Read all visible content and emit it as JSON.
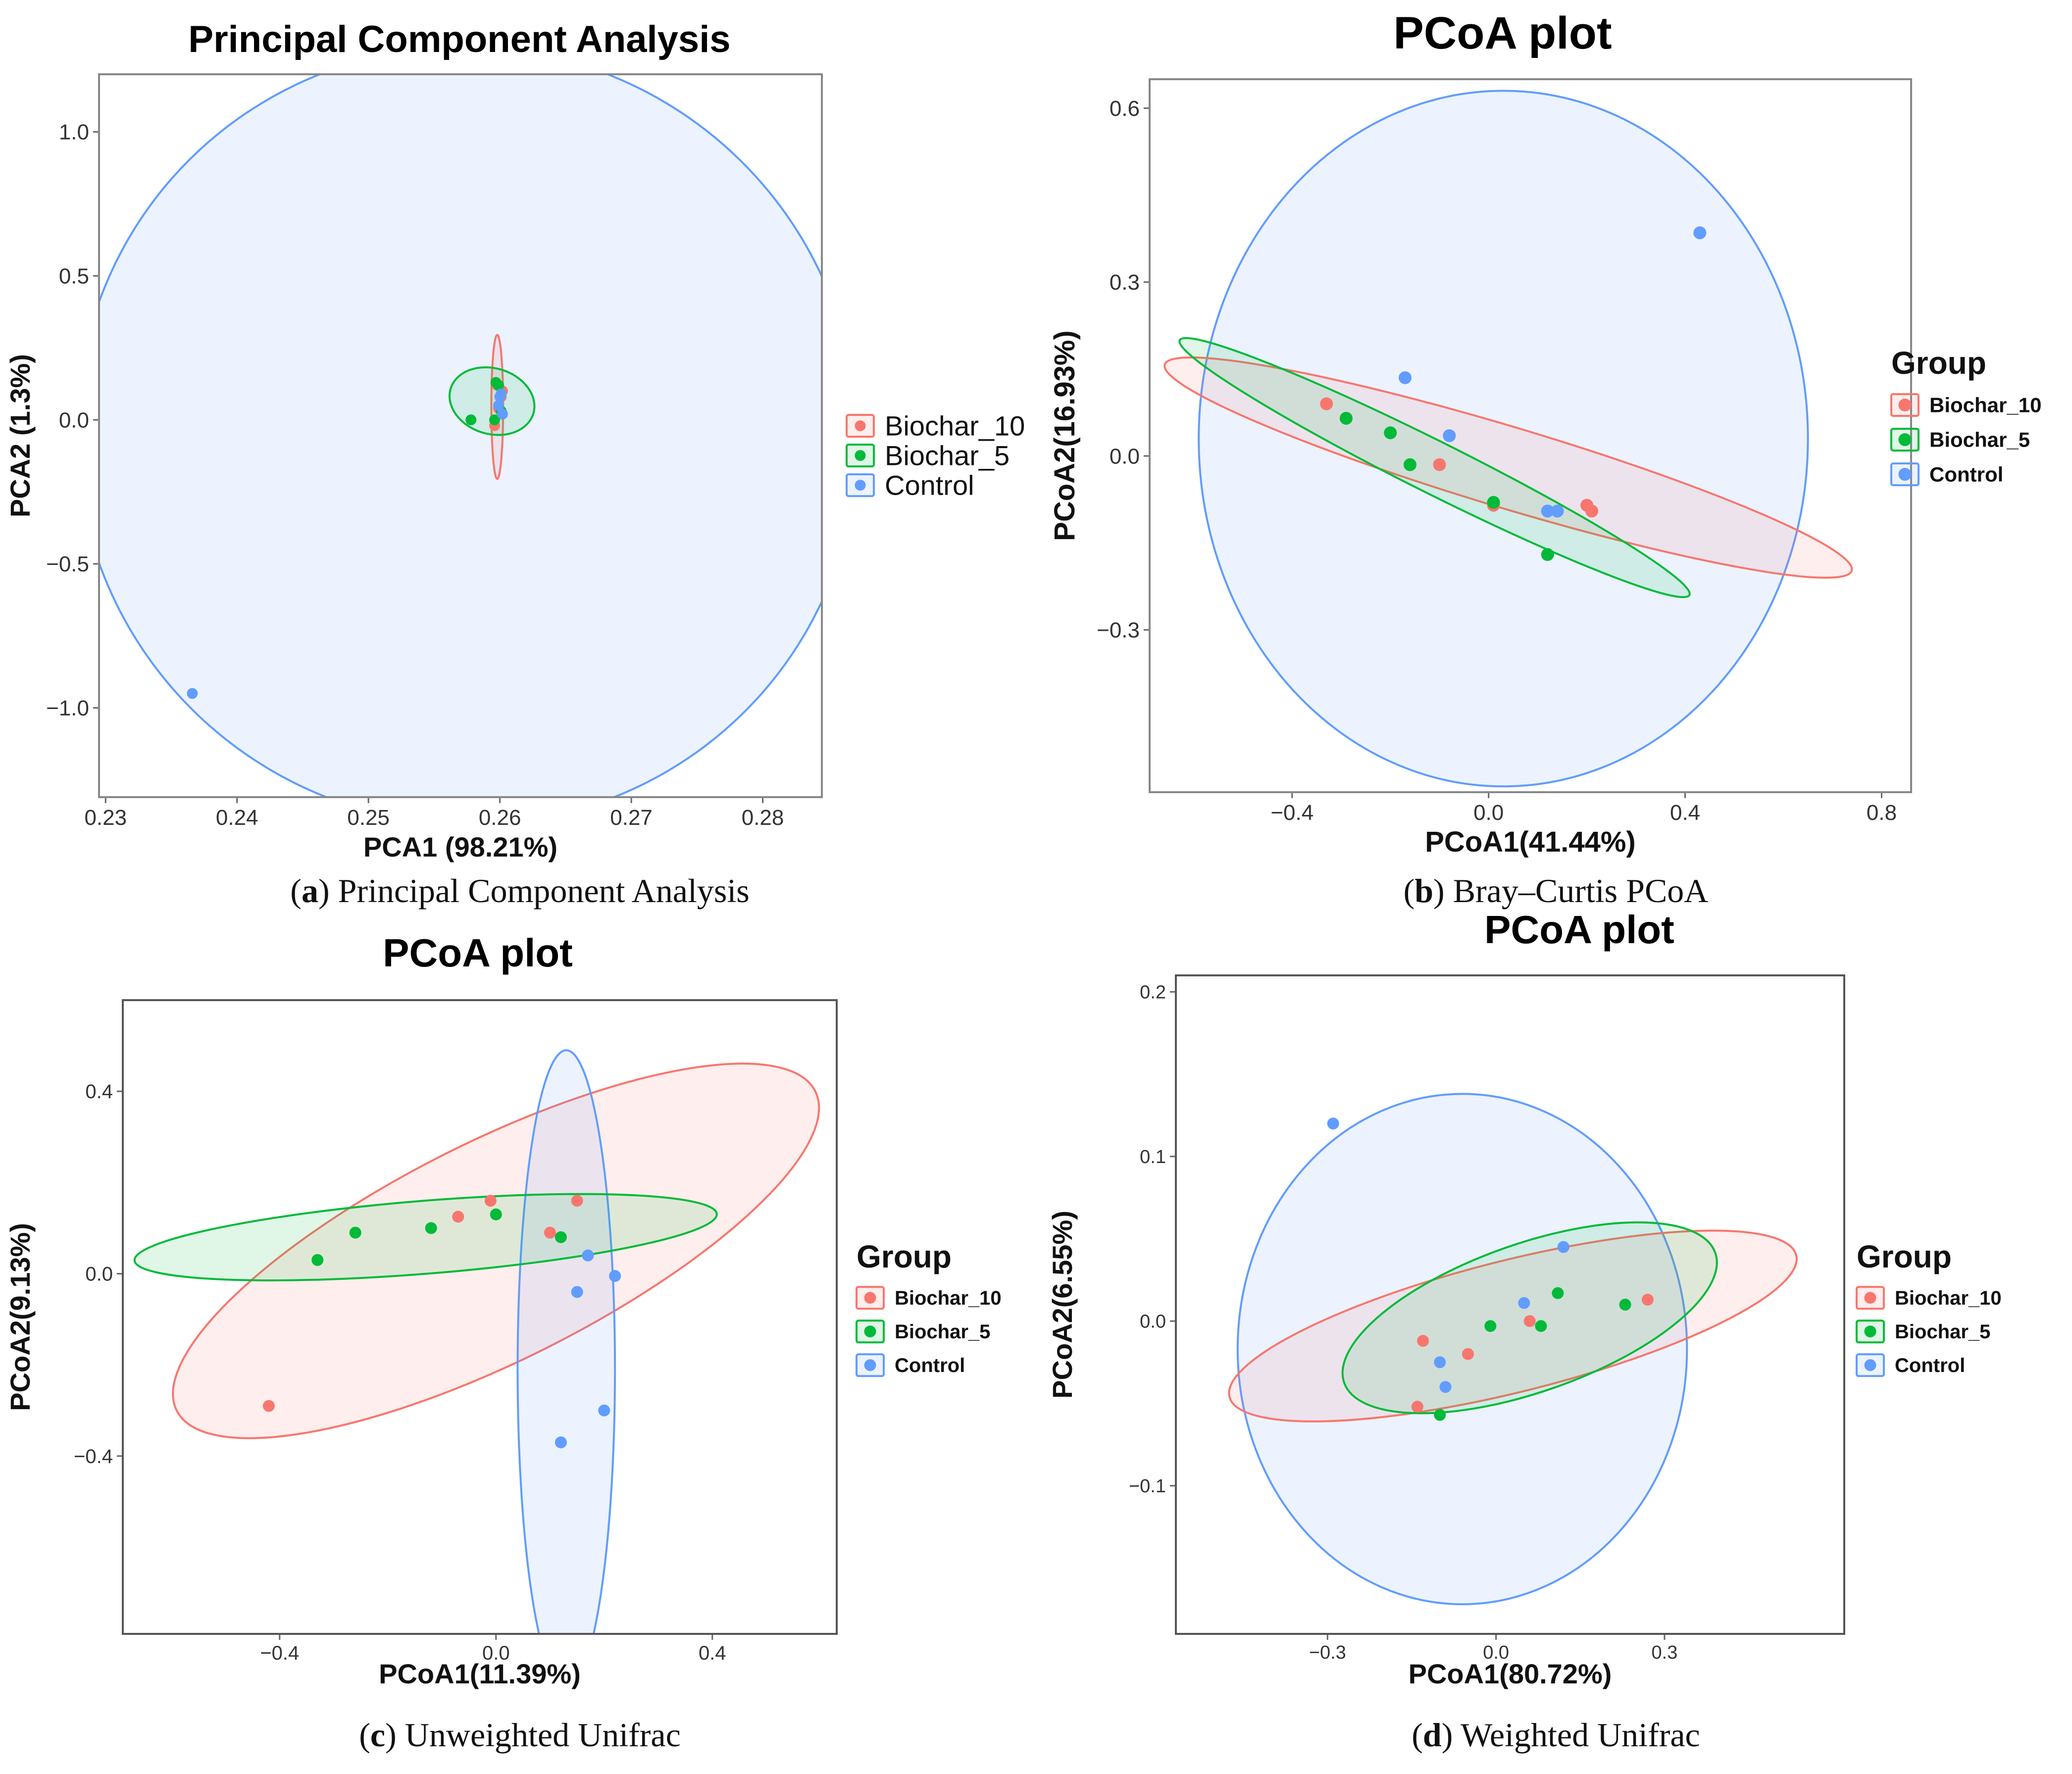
{
  "colors": {
    "Biochar_10": "#F8766D",
    "Biochar_5": "#00BA38",
    "Control": "#619CFF"
  },
  "groups": [
    "Biochar_10",
    "Biochar_5",
    "Control"
  ],
  "legend_title": "Group",
  "captions": [
    {
      "letter": "a",
      "open": "(",
      "close": ")",
      "text": " Principal Component Analysis"
    },
    {
      "letter": "b",
      "open": "(",
      "close": ")",
      "text": " Bray–Curtis PCoA"
    },
    {
      "letter": "c",
      "open": "(",
      "close": ")",
      "text": " Unweighted Unifrac"
    },
    {
      "letter": "d",
      "open": "(",
      "close": ")",
      "text": " Weighted Unifrac"
    }
  ],
  "chart_data": [
    {
      "type": "scatter",
      "title": "Principal Component Analysis",
      "xlabel": "PCA1 (98.21%)",
      "ylabel": "PCA2 (1.3%)",
      "xlim": [
        0.2295,
        0.2845
      ],
      "ylim": [
        -1.31,
        1.2
      ],
      "xticks": [
        0.23,
        0.24,
        0.25,
        0.26,
        0.27,
        0.28
      ],
      "xtick_labels": [
        "0.23",
        "0.24",
        "0.25",
        "0.26",
        "0.27",
        "0.28"
      ],
      "yticks": [
        -1.0,
        -0.5,
        0.0,
        0.5,
        1.0
      ],
      "ytick_labels": [
        "−1.0",
        "−0.5",
        "0.0",
        "0.5",
        "1.0"
      ],
      "legend_title": "",
      "series": [
        {
          "name": "Biochar_10",
          "x": [
            0.2598,
            0.2601,
            0.2596,
            0.2599,
            0.2602
          ],
          "y": [
            0.12,
            0.08,
            -0.02,
            0.04,
            0.1
          ]
        },
        {
          "name": "Biochar_5",
          "x": [
            0.2578,
            0.2597,
            0.2599,
            0.2596,
            0.2601
          ],
          "y": [
            0.0,
            0.13,
            0.12,
            0.0,
            0.03
          ]
        },
        {
          "name": "Control",
          "x": [
            0.2366,
            0.26,
            0.2599,
            0.2601,
            0.2602
          ],
          "y": [
            -0.95,
            0.08,
            0.05,
            0.09,
            0.02
          ]
        }
      ],
      "ellipses": [
        {
          "group": "Control",
          "cx": 0.2575,
          "cy": -0.055,
          "rx": 0.0295,
          "ry": 1.36,
          "tilt": -0.6
        },
        {
          "group": "Biochar_10",
          "cx": 0.2598,
          "cy": 0.045,
          "rx": 0.00045,
          "ry": 0.25,
          "tilt": 0.0
        },
        {
          "group": "Biochar_5",
          "cx": 0.2594,
          "cy": 0.065,
          "rx": 0.0025,
          "ry": 0.15,
          "tilt": -0.3
        }
      ]
    },
    {
      "type": "scatter",
      "title": "PCoA plot",
      "xlabel": "PCoA1(41.44%)",
      "ylabel": "PCoA2(16.93%)",
      "xlim": [
        -0.69,
        0.86
      ],
      "ylim": [
        -0.58,
        0.65
      ],
      "xticks": [
        -0.4,
        0.0,
        0.4,
        0.8
      ],
      "xtick_labels": [
        "−0.4",
        "0.0",
        "0.4",
        "0.8"
      ],
      "yticks": [
        -0.3,
        0.0,
        0.3,
        0.6
      ],
      "ytick_labels": [
        "−0.3",
        "0.0",
        "0.3",
        "0.6"
      ],
      "legend_title": "Group",
      "series": [
        {
          "name": "Biochar_10",
          "x": [
            -0.33,
            -0.1,
            0.01,
            0.2,
            0.21
          ],
          "y": [
            0.09,
            -0.015,
            -0.085,
            -0.085,
            -0.095
          ]
        },
        {
          "name": "Biochar_5",
          "x": [
            -0.29,
            -0.2,
            -0.16,
            0.01,
            0.12
          ],
          "y": [
            0.065,
            0.04,
            -0.015,
            -0.08,
            -0.17
          ]
        },
        {
          "name": "Control",
          "x": [
            -0.17,
            -0.08,
            0.12,
            0.14,
            0.43
          ],
          "y": [
            0.135,
            0.035,
            -0.095,
            -0.095,
            0.385
          ]
        }
      ],
      "ellipses": [
        {
          "group": "Control",
          "cx": 0.03,
          "cy": 0.03,
          "rx": 0.62,
          "ry": 0.6,
          "tilt": 0.0
        },
        {
          "group": "Biochar_10",
          "cx": 0.04,
          "cy": -0.02,
          "rx": 0.73,
          "ry": 0.07,
          "tilt": -0.3
        },
        {
          "group": "Biochar_5",
          "cx": -0.11,
          "cy": -0.02,
          "rx": 0.58,
          "ry": 0.045,
          "tilt": -0.5
        }
      ]
    },
    {
      "type": "scatter",
      "title": "PCoA plot",
      "xlabel": "PCoA1(11.39%)",
      "ylabel": "PCoA2(9.13%)",
      "xlim": [
        -0.69,
        0.63
      ],
      "ylim": [
        -0.79,
        0.6
      ],
      "xticks": [
        -0.4,
        0.0,
        0.4
      ],
      "xtick_labels": [
        "−0.4",
        "0.0",
        "0.4"
      ],
      "yticks": [
        -0.4,
        0.0,
        0.4
      ],
      "ytick_labels": [
        "−0.4",
        "0.0",
        "0.4"
      ],
      "legend_title": "Group",
      "series": [
        {
          "name": "Biochar_10",
          "x": [
            -0.42,
            -0.07,
            -0.01,
            0.1,
            0.15
          ],
          "y": [
            -0.29,
            0.125,
            0.16,
            0.09,
            0.16
          ]
        },
        {
          "name": "Biochar_5",
          "x": [
            -0.33,
            -0.26,
            -0.12,
            0.0,
            0.12
          ],
          "y": [
            0.03,
            0.09,
            0.1,
            0.13,
            0.08
          ]
        },
        {
          "name": "Control",
          "x": [
            0.12,
            0.15,
            0.17,
            0.2,
            0.22
          ],
          "y": [
            -0.37,
            -0.04,
            0.04,
            -0.3,
            -0.005
          ]
        }
      ],
      "ellipses": [
        {
          "group": "Biochar_10",
          "cx": 0.0,
          "cy": 0.05,
          "rx": 0.66,
          "ry": 0.24,
          "tilt": 0.5
        },
        {
          "group": "Control",
          "cx": 0.13,
          "cy": -0.21,
          "rx": 0.09,
          "ry": 0.7,
          "tilt": 0.0
        },
        {
          "group": "Biochar_5",
          "cx": -0.13,
          "cy": 0.08,
          "rx": 0.54,
          "ry": 0.08,
          "tilt": 0.08
        }
      ]
    },
    {
      "type": "scatter",
      "title": "PCoA plot",
      "xlabel": "PCoA1(80.72%)",
      "ylabel": "PCoA2(6.55%)",
      "xlim": [
        -0.57,
        0.62
      ],
      "ylim": [
        -0.19,
        0.21
      ],
      "xticks": [
        -0.3,
        0.0,
        0.3
      ],
      "xtick_labels": [
        "−0.3",
        "0.0",
        "0.3"
      ],
      "yticks": [
        -0.1,
        0.0,
        0.1,
        0.2
      ],
      "ytick_labels": [
        "−0.1",
        "0.0",
        "0.1",
        "0.2"
      ],
      "legend_title": "Group",
      "series": [
        {
          "name": "Biochar_10",
          "x": [
            -0.14,
            -0.13,
            -0.05,
            0.06,
            0.27
          ],
          "y": [
            -0.052,
            -0.012,
            -0.02,
            0.0,
            0.013
          ]
        },
        {
          "name": "Biochar_5",
          "x": [
            -0.1,
            -0.01,
            0.08,
            0.11,
            0.23
          ],
          "y": [
            -0.057,
            -0.003,
            -0.003,
            0.017,
            0.01
          ]
        },
        {
          "name": "Control",
          "x": [
            -0.29,
            -0.1,
            -0.09,
            0.05,
            0.12
          ],
          "y": [
            0.12,
            -0.025,
            -0.04,
            0.011,
            0.045
          ]
        }
      ],
      "ellipses": [
        {
          "group": "Control",
          "cx": -0.06,
          "cy": -0.017,
          "rx": 0.4,
          "ry": 0.155,
          "tilt": 0.0
        },
        {
          "group": "Biochar_10",
          "cx": 0.03,
          "cy": -0.003,
          "rx": 0.52,
          "ry": 0.04,
          "tilt": 0.25
        },
        {
          "group": "Biochar_5",
          "cx": 0.06,
          "cy": 0.002,
          "rx": 0.35,
          "ry": 0.045,
          "tilt": 0.35
        }
      ]
    }
  ]
}
